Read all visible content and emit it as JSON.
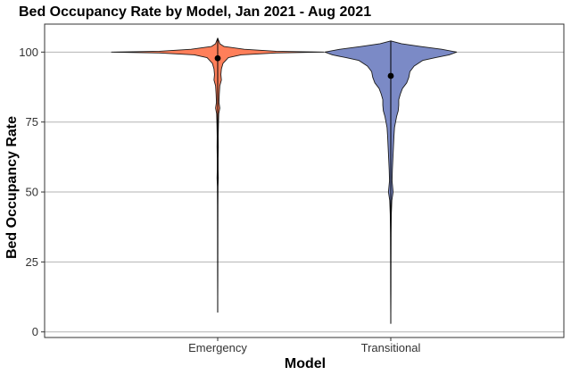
{
  "chart_data": {
    "type": "violin",
    "title": "Bed Occupancy Rate by Model, Jan 2021 - Aug 2021",
    "xlabel": "Model",
    "ylabel": "Bed Occupancy Rate",
    "ylim": [
      -2,
      110
    ],
    "yticks": [
      0,
      25,
      50,
      75,
      100
    ],
    "grid": "horizontal major",
    "categories": [
      "Emergency",
      "Transitional"
    ],
    "series": [
      {
        "category": "Emergency",
        "fill": "#ff7f5a",
        "median": 97.8,
        "min": 7,
        "max": 105,
        "density_profile": [
          [
            105,
            0.0
          ],
          [
            103,
            0.02
          ],
          [
            102,
            0.06
          ],
          [
            101,
            0.25
          ],
          [
            100.3,
            0.55
          ],
          [
            100,
            1.0
          ],
          [
            99.7,
            0.55
          ],
          [
            99,
            0.22
          ],
          [
            98,
            0.1
          ],
          [
            96,
            0.05
          ],
          [
            94,
            0.035
          ],
          [
            92,
            0.03
          ],
          [
            90,
            0.035
          ],
          [
            88,
            0.02
          ],
          [
            85,
            0.015
          ],
          [
            82,
            0.012
          ],
          [
            80,
            0.02
          ],
          [
            78,
            0.01
          ],
          [
            74,
            0.007
          ],
          [
            70,
            0.005
          ],
          [
            66,
            0.006
          ],
          [
            62,
            0.004
          ],
          [
            58,
            0.004
          ],
          [
            55,
            0.006
          ],
          [
            52,
            0.003
          ],
          [
            45,
            0.002
          ],
          [
            35,
            0.0015
          ],
          [
            20,
            0.001
          ],
          [
            7,
            0.0
          ]
        ]
      },
      {
        "category": "Transitional",
        "fill": "#7b8ac6",
        "median": 91.5,
        "min": 3,
        "max": 104,
        "density_profile": [
          [
            104,
            0.0
          ],
          [
            103,
            0.1
          ],
          [
            102,
            0.28
          ],
          [
            101,
            0.48
          ],
          [
            100,
            0.62
          ],
          [
            99,
            0.55
          ],
          [
            98,
            0.42
          ],
          [
            97,
            0.3
          ],
          [
            95,
            0.22
          ],
          [
            93,
            0.18
          ],
          [
            91,
            0.17
          ],
          [
            89,
            0.15
          ],
          [
            87,
            0.11
          ],
          [
            85,
            0.09
          ],
          [
            83,
            0.075
          ],
          [
            81,
            0.075
          ],
          [
            79,
            0.07
          ],
          [
            77,
            0.055
          ],
          [
            75,
            0.045
          ],
          [
            73,
            0.035
          ],
          [
            70,
            0.03
          ],
          [
            66,
            0.025
          ],
          [
            62,
            0.02
          ],
          [
            58,
            0.015
          ],
          [
            54,
            0.012
          ],
          [
            50,
            0.022
          ],
          [
            47,
            0.01
          ],
          [
            42,
            0.005
          ],
          [
            35,
            0.003
          ],
          [
            25,
            0.002
          ],
          [
            15,
            0.0015
          ],
          [
            3,
            0.0
          ]
        ]
      }
    ]
  }
}
